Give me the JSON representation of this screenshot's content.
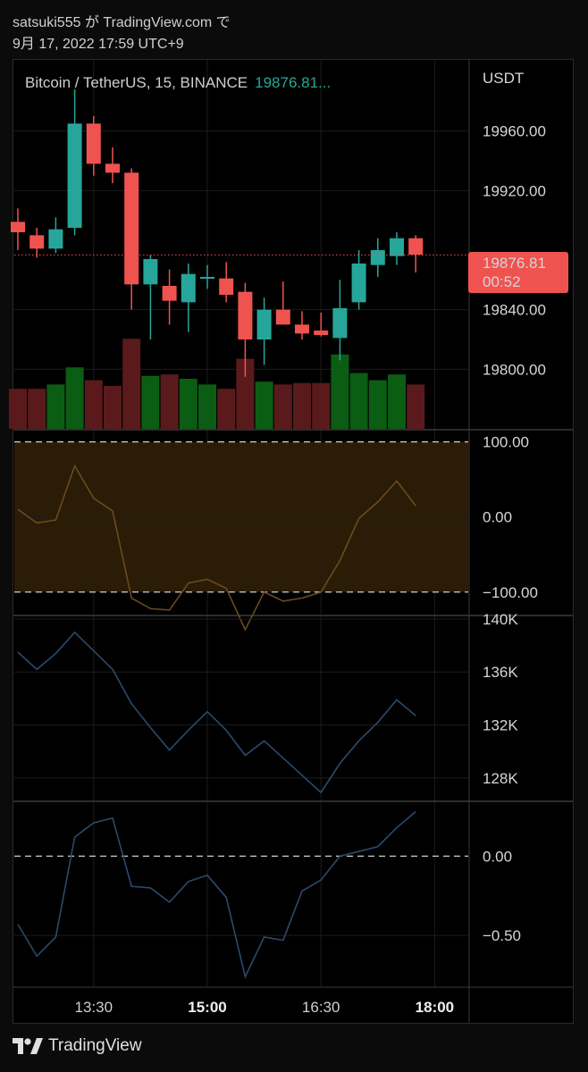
{
  "header": {
    "line1": "satsuki555 が TradingView.com で",
    "line2": "9月 17, 2022 17:59 UTC+9"
  },
  "legend": {
    "symbol": "Bitcoin / TetherUS, 15, BINANCE",
    "price": "19876.81..."
  },
  "footer": {
    "brand": "TradingView"
  },
  "colors": {
    "up": "#26a69a",
    "down": "#ef5350",
    "vol_up": "#0b5d14",
    "vol_down": "#5a1a1c",
    "cci_line": "#6b4a1e",
    "cci_band": "#2a1c06",
    "obv_line": "#2b4a6b",
    "cmf_line": "#2b4a6b",
    "price_tag": "#ef5350"
  },
  "chart_data": [
    {
      "type": "candlestick",
      "title": "Bitcoin / TetherUS, 15, BINANCE",
      "ylabel": "USDT",
      "ylim": [
        19760,
        20000
      ],
      "yticks": [
        "19960.00",
        "19920.00",
        "19840.00",
        "19800.00"
      ],
      "last_price_label": "19876.81",
      "countdown": "00:52",
      "last_price": 19876.81,
      "candles": [
        {
          "o": 19899,
          "h": 19908,
          "l": 19880,
          "c": 19892
        },
        {
          "o": 19890,
          "h": 19895,
          "l": 19875,
          "c": 19881
        },
        {
          "o": 19881,
          "h": 19902,
          "l": 19878,
          "c": 19894
        },
        {
          "o": 19895,
          "h": 19988,
          "l": 19890,
          "c": 19965
        },
        {
          "o": 19965,
          "h": 19970,
          "l": 19930,
          "c": 19938
        },
        {
          "o": 19938,
          "h": 19949,
          "l": 19925,
          "c": 19932
        },
        {
          "o": 19932,
          "h": 19935,
          "l": 19840,
          "c": 19857
        },
        {
          "o": 19857,
          "h": 19877,
          "l": 19820,
          "c": 19874
        },
        {
          "o": 19856,
          "h": 19867,
          "l": 19830,
          "c": 19846
        },
        {
          "o": 19845,
          "h": 19871,
          "l": 19825,
          "c": 19864
        },
        {
          "o": 19861,
          "h": 19870,
          "l": 19854,
          "c": 19862
        },
        {
          "o": 19861,
          "h": 19872,
          "l": 19845,
          "c": 19850
        },
        {
          "o": 19852,
          "h": 19858,
          "l": 19795,
          "c": 19820
        },
        {
          "o": 19820,
          "h": 19848,
          "l": 19803,
          "c": 19840
        },
        {
          "o": 19840,
          "h": 19859,
          "l": 19830,
          "c": 19830
        },
        {
          "o": 19830,
          "h": 19839,
          "l": 19820,
          "c": 19824
        },
        {
          "o": 19826,
          "h": 19838,
          "l": 19822,
          "c": 19823
        },
        {
          "o": 19821,
          "h": 19860,
          "l": 19806,
          "c": 19841
        },
        {
          "o": 19845,
          "h": 19880,
          "l": 19840,
          "c": 19871
        },
        {
          "o": 19870,
          "h": 19888,
          "l": 19862,
          "c": 19880
        },
        {
          "o": 19876,
          "h": 19892,
          "l": 19870,
          "c": 19888
        },
        {
          "o": 19888,
          "h": 19890,
          "l": 19865,
          "c": 19877
        }
      ],
      "volume_relative": [
        0.28,
        0.28,
        0.31,
        0.43,
        0.34,
        0.3,
        0.63,
        0.37,
        0.38,
        0.35,
        0.31,
        0.28,
        0.49,
        0.33,
        0.31,
        0.32,
        0.32,
        0.52,
        0.39,
        0.34,
        0.38,
        0.31
      ]
    },
    {
      "type": "line",
      "name": "",
      "ylim": [
        -130,
        115
      ],
      "yticks": [
        "100.00",
        "0.00",
        "−100.00"
      ],
      "bands": [
        100,
        -100
      ],
      "values": [
        10,
        -8,
        -4,
        68,
        25,
        8,
        -108,
        -122,
        -124,
        -88,
        -83,
        -95,
        -150,
        -100,
        -112,
        -108,
        -100,
        -58,
        -2,
        20,
        48,
        15
      ]
    },
    {
      "type": "line",
      "name": "",
      "ylim": [
        126300,
        140200
      ],
      "yticks": [
        "140K",
        "136K",
        "132K",
        "128K"
      ],
      "values": [
        137500,
        136200,
        137400,
        139000,
        137600,
        136200,
        133600,
        131800,
        130100,
        131600,
        133000,
        131600,
        129700,
        130800,
        129500,
        128200,
        126900,
        129100,
        130800,
        132200,
        133900,
        132700
      ]
    },
    {
      "type": "line",
      "name": "",
      "ylim": [
        -0.82,
        0.34
      ],
      "yticks": [
        "0.00",
        "−0.50"
      ],
      "zero_line": 0,
      "values": [
        -0.43,
        -0.63,
        -0.51,
        0.12,
        0.21,
        0.24,
        -0.19,
        -0.2,
        -0.29,
        -0.16,
        -0.12,
        -0.26,
        -0.76,
        -0.51,
        -0.53,
        -0.22,
        -0.15,
        0.0,
        0.03,
        0.06,
        0.18,
        0.28
      ]
    }
  ],
  "time_axis": {
    "labels": [
      "13:30",
      "15:00",
      "16:30",
      "18:00"
    ],
    "bold": [
      "15:00",
      "18:00"
    ],
    "bar_index": [
      4,
      10,
      16,
      22
    ]
  }
}
